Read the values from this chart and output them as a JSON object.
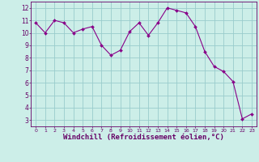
{
  "x": [
    0,
    1,
    2,
    3,
    4,
    5,
    6,
    7,
    8,
    9,
    10,
    11,
    12,
    13,
    14,
    15,
    16,
    17,
    18,
    19,
    20,
    21,
    22,
    23
  ],
  "y": [
    10.8,
    10.0,
    11.0,
    10.8,
    10.0,
    10.3,
    10.5,
    9.0,
    8.2,
    8.6,
    10.1,
    10.8,
    9.8,
    10.8,
    12.0,
    11.8,
    11.6,
    10.5,
    8.5,
    7.3,
    6.9,
    6.1,
    3.1,
    3.5
  ],
  "line_color": "#880088",
  "marker": "D",
  "marker_size": 2,
  "line_width": 0.8,
  "background_color": "#cceee8",
  "grid_color": "#99cccc",
  "xlabel": "Windchill (Refroidissement éolien,°C)",
  "xlabel_fontsize": 6.5,
  "ytick_labels": [
    "3",
    "4",
    "5",
    "6",
    "7",
    "8",
    "9",
    "10",
    "11",
    "12"
  ],
  "ytick_values": [
    3,
    4,
    5,
    6,
    7,
    8,
    9,
    10,
    11,
    12
  ],
  "xtick_labels": [
    "0",
    "1",
    "2",
    "3",
    "4",
    "5",
    "6",
    "7",
    "8",
    "9",
    "10",
    "11",
    "12",
    "13",
    "14",
    "15",
    "16",
    "17",
    "18",
    "19",
    "20",
    "21",
    "22",
    "23"
  ],
  "ylim": [
    2.5,
    12.5
  ],
  "xlim": [
    -0.5,
    23.5
  ],
  "tick_color": "#660066",
  "axis_color": "#660066",
  "ytick_fontsize": 5.5,
  "xtick_fontsize": 4.5
}
